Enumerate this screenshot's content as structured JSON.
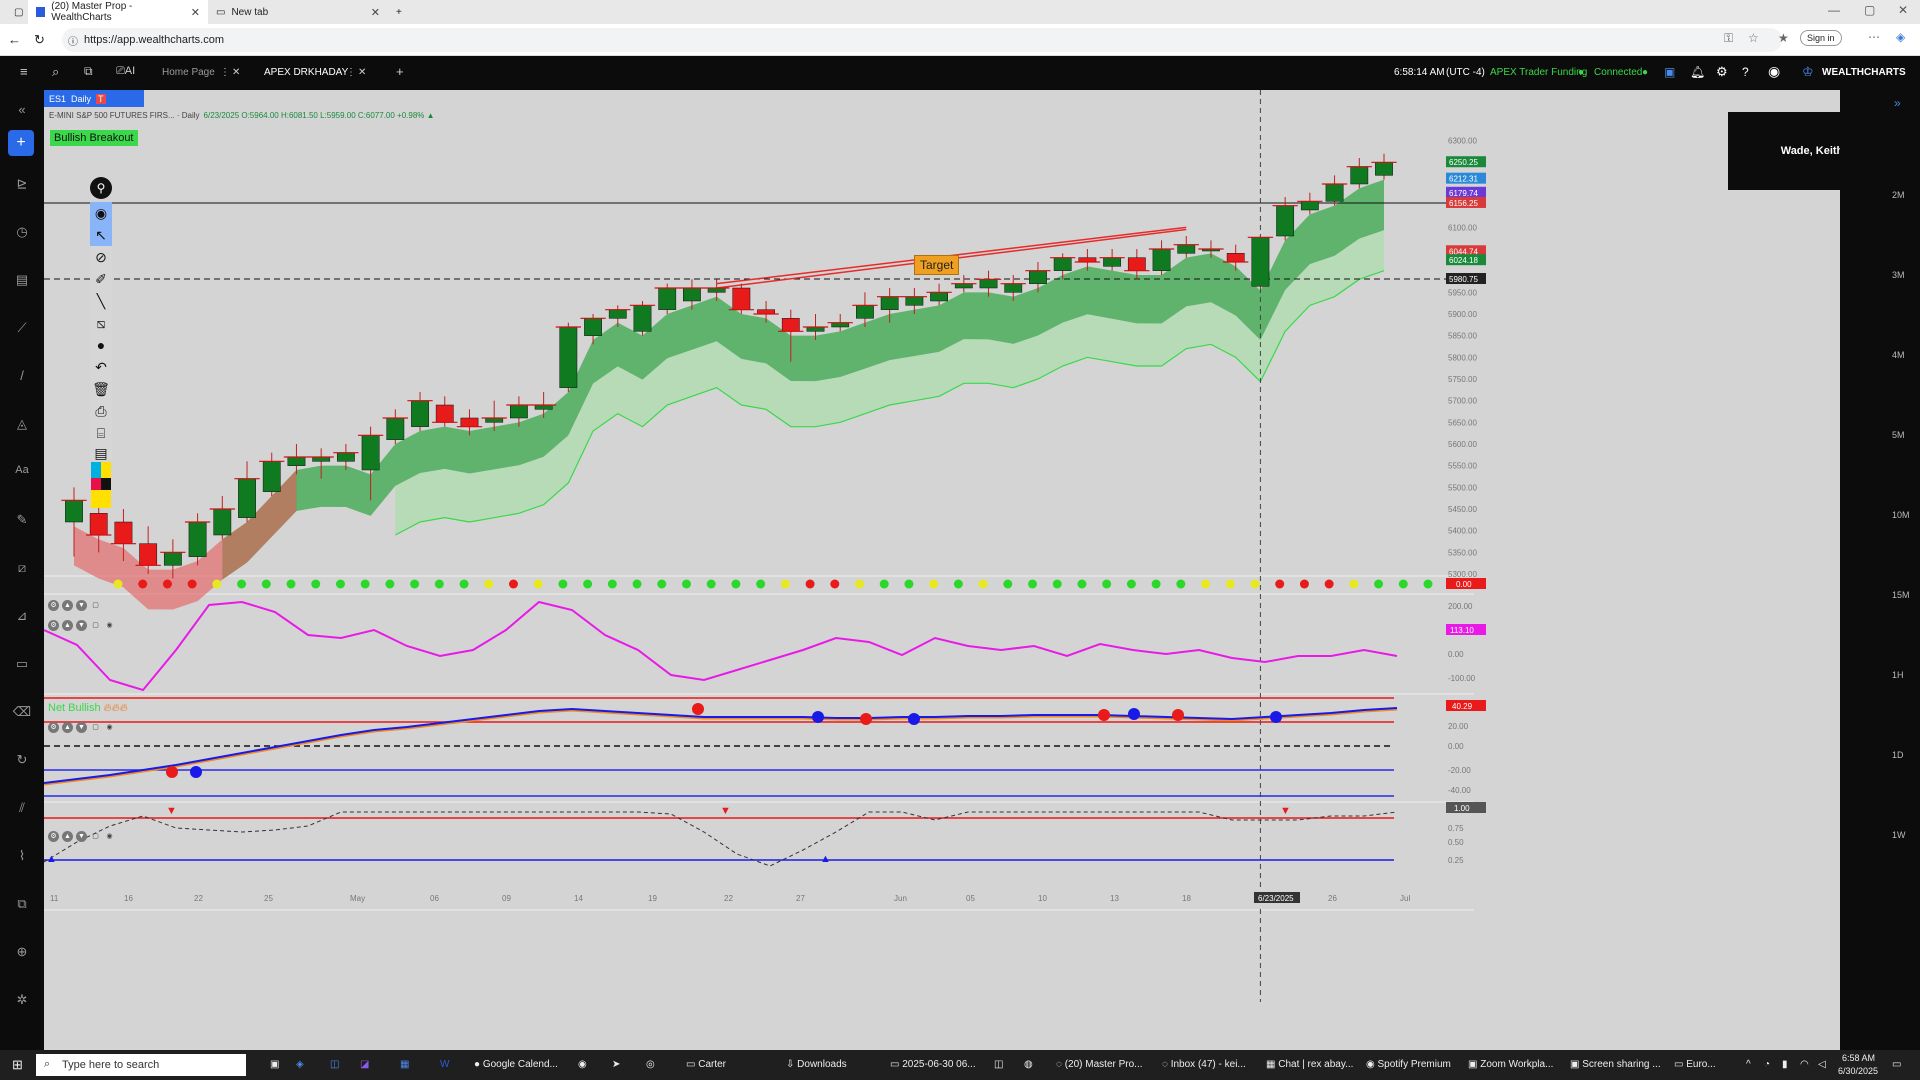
{
  "browser": {
    "tabs": [
      {
        "label": "(20) Master Prop - WealthCharts"
      },
      {
        "label": "New tab"
      }
    ],
    "url": "https://app.wealthcharts.com",
    "sign_in": "Sign in"
  },
  "topbar": {
    "tabs": [
      {
        "label": "Home Page"
      },
      {
        "label": "APEX DRKHADAY"
      }
    ],
    "time": "6:58:14 AM",
    "timezone": "(UTC -4)",
    "funding": "APEX Trader Funding",
    "status": "Connected",
    "brand": "WEALTHCHARTS"
  },
  "symbol_tab": {
    "symbol": "ES1",
    "interval": "Daily",
    "t": "T"
  },
  "chart": {
    "legend": "E-MINI S&P 500 FUTURES FIRS... · Daily",
    "ohlc": "6/23/2025 O:5964.00 H:6081.50 L:5959.00 C:6077.00 +0.98% ▲",
    "signal_label": "Bullish Breakout",
    "target_label": "Target",
    "overlay_name": "Wade, Keith",
    "mood_label": "Net Bullish",
    "crosshair_date": "6/23/2025",
    "price_ticks": [
      "6300.00",
      "6250.25",
      "6212.31",
      "6179.74",
      "6156.25",
      "6100.00",
      "6044.74",
      "6024.18",
      "5980.75",
      "5950.00",
      "5900.00",
      "5850.00",
      "5800.00",
      "5750.00",
      "5700.00",
      "5650.00",
      "5600.00",
      "5550.00",
      "5500.00",
      "5450.00",
      "5400.00",
      "5350.00",
      "5300.00"
    ],
    "price_labels_colored": [
      {
        "v": "6250.25",
        "c": "#1a8a3a"
      },
      {
        "v": "6212.31",
        "c": "#2a8ad8"
      },
      {
        "v": "6179.74",
        "c": "#6a3ad8"
      },
      {
        "v": "6156.25",
        "c": "#d83a3a"
      },
      {
        "v": "6044.74",
        "c": "#d83a3a"
      },
      {
        "v": "6024.18",
        "c": "#1a8a3a"
      },
      {
        "v": "5980.75",
        "c": "#222222"
      }
    ],
    "dots_pane_value": "0.00",
    "osc1_ticks": [
      "200.00",
      "113.10",
      "0.00",
      "-100.00"
    ],
    "osc2_ticks": [
      "40.29",
      "20.00",
      "0.00",
      "-20.00",
      "-40.00"
    ],
    "osc3_ticks": [
      "1.00",
      "0.75",
      "0.50",
      "0.25"
    ],
    "date_ticks": [
      "11",
      "16",
      "22",
      "25",
      "May",
      "06",
      "09",
      "14",
      "19",
      "22",
      "27",
      "Jun",
      "05",
      "10",
      "13",
      "18",
      "6/23/2025",
      "26",
      "Jul"
    ],
    "volume_scale": [
      "2M",
      "3M",
      "4M",
      "5M",
      "10M",
      "15M",
      "1H",
      "1D",
      "1W"
    ]
  },
  "chart_data": {
    "type": "candlestick",
    "candles": [
      {
        "d": "Apr-11",
        "o": 5420,
        "c": 5470,
        "h": 5500,
        "l": 5340
      },
      {
        "d": "Apr-14",
        "o": 5440,
        "c": 5390,
        "h": 5480,
        "l": 5350
      },
      {
        "d": "Apr-15",
        "o": 5420,
        "c": 5370,
        "h": 5450,
        "l": 5330
      },
      {
        "d": "Apr-16",
        "o": 5370,
        "c": 5320,
        "h": 5410,
        "l": 5300
      },
      {
        "d": "Apr-17",
        "o": 5320,
        "c": 5350,
        "h": 5380,
        "l": 5290
      },
      {
        "d": "Apr-21",
        "o": 5340,
        "c": 5420,
        "h": 5440,
        "l": 5320
      },
      {
        "d": "Apr-22",
        "o": 5390,
        "c": 5450,
        "h": 5480,
        "l": 5380
      },
      {
        "d": "Apr-23",
        "o": 5430,
        "c": 5520,
        "h": 5560,
        "l": 5420
      },
      {
        "d": "Apr-24",
        "o": 5490,
        "c": 5560,
        "h": 5580,
        "l": 5480
      },
      {
        "d": "Apr-25",
        "o": 5550,
        "c": 5570,
        "h": 5600,
        "l": 5530
      },
      {
        "d": "Apr-28",
        "o": 5560,
        "c": 5570,
        "h": 5590,
        "l": 5520
      },
      {
        "d": "Apr-29",
        "o": 5560,
        "c": 5580,
        "h": 5600,
        "l": 5540
      },
      {
        "d": "Apr-30",
        "o": 5540,
        "c": 5620,
        "h": 5640,
        "l": 5470
      },
      {
        "d": "May-01",
        "o": 5610,
        "c": 5660,
        "h": 5680,
        "l": 5600
      },
      {
        "d": "May-02",
        "o": 5640,
        "c": 5700,
        "h": 5720,
        "l": 5630
      },
      {
        "d": "May-05",
        "o": 5690,
        "c": 5650,
        "h": 5710,
        "l": 5640
      },
      {
        "d": "May-06",
        "o": 5660,
        "c": 5640,
        "h": 5680,
        "l": 5620
      },
      {
        "d": "May-07",
        "o": 5650,
        "c": 5660,
        "h": 5700,
        "l": 5630
      },
      {
        "d": "May-08",
        "o": 5660,
        "c": 5690,
        "h": 5710,
        "l": 5640
      },
      {
        "d": "May-09",
        "o": 5680,
        "c": 5690,
        "h": 5720,
        "l": 5660
      },
      {
        "d": "May-12",
        "o": 5730,
        "c": 5870,
        "h": 5880,
        "l": 5720
      },
      {
        "d": "May-13",
        "o": 5850,
        "c": 5890,
        "h": 5900,
        "l": 5830
      },
      {
        "d": "May-14",
        "o": 5890,
        "c": 5910,
        "h": 5920,
        "l": 5870
      },
      {
        "d": "May-15",
        "o": 5860,
        "c": 5920,
        "h": 5930,
        "l": 5850
      },
      {
        "d": "May-16",
        "o": 5910,
        "c": 5960,
        "h": 5970,
        "l": 5900
      },
      {
        "d": "May-19",
        "o": 5930,
        "c": 5960,
        "h": 5980,
        "l": 5910
      },
      {
        "d": "May-20",
        "o": 5950,
        "c": 5960,
        "h": 5980,
        "l": 5930
      },
      {
        "d": "May-21",
        "o": 5960,
        "c": 5910,
        "h": 5970,
        "l": 5900
      },
      {
        "d": "May-22",
        "o": 5910,
        "c": 5900,
        "h": 5930,
        "l": 5880
      },
      {
        "d": "May-23",
        "o": 5890,
        "c": 5860,
        "h": 5910,
        "l": 5790
      },
      {
        "d": "May-27",
        "o": 5860,
        "c": 5870,
        "h": 5900,
        "l": 5840
      },
      {
        "d": "May-28",
        "o": 5870,
        "c": 5880,
        "h": 5900,
        "l": 5860
      },
      {
        "d": "May-29",
        "o": 5890,
        "c": 5920,
        "h": 5950,
        "l": 5870
      },
      {
        "d": "May-30",
        "o": 5910,
        "c": 5940,
        "h": 5960,
        "l": 5880
      },
      {
        "d": "Jun-02",
        "o": 5920,
        "c": 5940,
        "h": 5960,
        "l": 5900
      },
      {
        "d": "Jun-03",
        "o": 5930,
        "c": 5950,
        "h": 5970,
        "l": 5920
      },
      {
        "d": "Jun-04",
        "o": 5960,
        "c": 5970,
        "h": 5990,
        "l": 5950
      },
      {
        "d": "Jun-05",
        "o": 5960,
        "c": 5980,
        "h": 6000,
        "l": 5940
      },
      {
        "d": "Jun-06",
        "o": 5950,
        "c": 5970,
        "h": 5990,
        "l": 5930
      },
      {
        "d": "Jun-09",
        "o": 5970,
        "c": 6000,
        "h": 6020,
        "l": 5950
      },
      {
        "d": "Jun-10",
        "o": 6000,
        "c": 6030,
        "h": 6040,
        "l": 5980
      },
      {
        "d": "Jun-11",
        "o": 6030,
        "c": 6020,
        "h": 6050,
        "l": 6000
      },
      {
        "d": "Jun-12",
        "o": 6010,
        "c": 6030,
        "h": 6050,
        "l": 6000
      },
      {
        "d": "Jun-13",
        "o": 6030,
        "c": 6000,
        "h": 6050,
        "l": 5980
      },
      {
        "d": "Jun-16",
        "o": 6000,
        "c": 6050,
        "h": 6070,
        "l": 5990
      },
      {
        "d": "Jun-17",
        "o": 6040,
        "c": 6060,
        "h": 6080,
        "l": 6030
      },
      {
        "d": "Jun-18",
        "o": 6050,
        "c": 6050,
        "h": 6070,
        "l": 6030
      },
      {
        "d": "Jun-20",
        "o": 6040,
        "c": 6020,
        "h": 6060,
        "l": 6000
      },
      {
        "d": "Jun-23",
        "o": 5964,
        "c": 6077,
        "h": 6081.5,
        "l": 5959
      },
      {
        "d": "Jun-24",
        "o": 6080,
        "c": 6150,
        "h": 6170,
        "l": 6070
      },
      {
        "d": "Jun-25",
        "o": 6140,
        "c": 6160,
        "h": 6180,
        "l": 6130
      },
      {
        "d": "Jun-26",
        "o": 6160,
        "c": 6200,
        "h": 6220,
        "l": 6150
      },
      {
        "d": "Jun-27",
        "o": 6200,
        "c": 6240,
        "h": 6260,
        "l": 6190
      },
      {
        "d": "Jun-30",
        "o": 6220,
        "c": 6250,
        "h": 6270,
        "l": 6210
      }
    ],
    "ylim": [
      5300,
      6320
    ],
    "horizontal_lines": [
      6156.25,
      5980.75
    ]
  }
}
